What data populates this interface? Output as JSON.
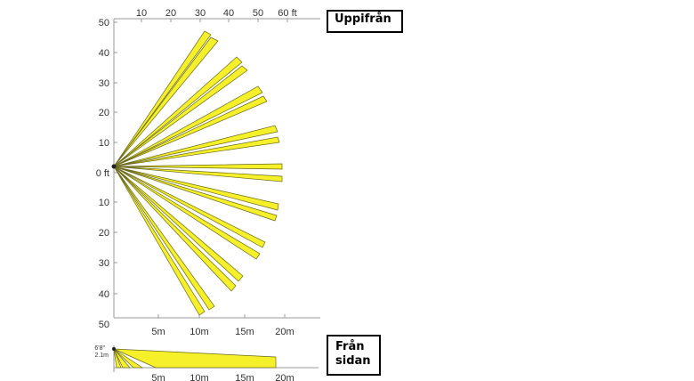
{
  "top_view": {
    "label": "Uppifrån",
    "ft_axis_ticks": [
      "10",
      "20",
      "30",
      "40",
      "50",
      "60 ft"
    ],
    "side_axis_ticks": [
      "50",
      "40",
      "30",
      "20",
      "10",
      "0 ft",
      "10",
      "20",
      "30",
      "40",
      "50"
    ],
    "m_axis_ticks": [
      "5m",
      "10m",
      "15m",
      "20m"
    ],
    "beam_color": "#f5f02a",
    "beam_outline_color": "#6b6b1a"
  },
  "side_view": {
    "label_line1": "Från",
    "label_line2": "sidan",
    "height_ft": "6'8\"",
    "height_m": "2.1m",
    "m_axis_ticks": [
      "5m",
      "10m",
      "15m",
      "20m"
    ]
  }
}
